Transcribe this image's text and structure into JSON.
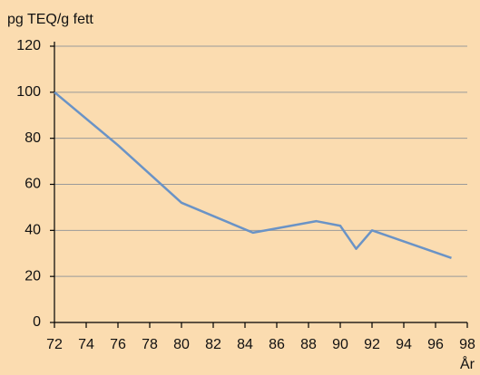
{
  "chart_data": {
    "type": "line",
    "y_label": "pg TEQ/g fett",
    "x_label": "År",
    "x": [
      72,
      76,
      80,
      84.5,
      88.5,
      90,
      91,
      92,
      97
    ],
    "series": [
      {
        "color": "#6a93c6",
        "values": [
          100,
          77,
          52,
          39,
          44,
          42,
          32,
          40,
          28
        ]
      }
    ],
    "xlim": [
      72,
      98
    ],
    "xticks": [
      72,
      74,
      76,
      78,
      80,
      82,
      84,
      86,
      88,
      90,
      92,
      94,
      96,
      98
    ],
    "ylim": [
      0,
      120
    ],
    "yticks": [
      0,
      20,
      40,
      60,
      80,
      100,
      120
    ],
    "grid": true
  }
}
